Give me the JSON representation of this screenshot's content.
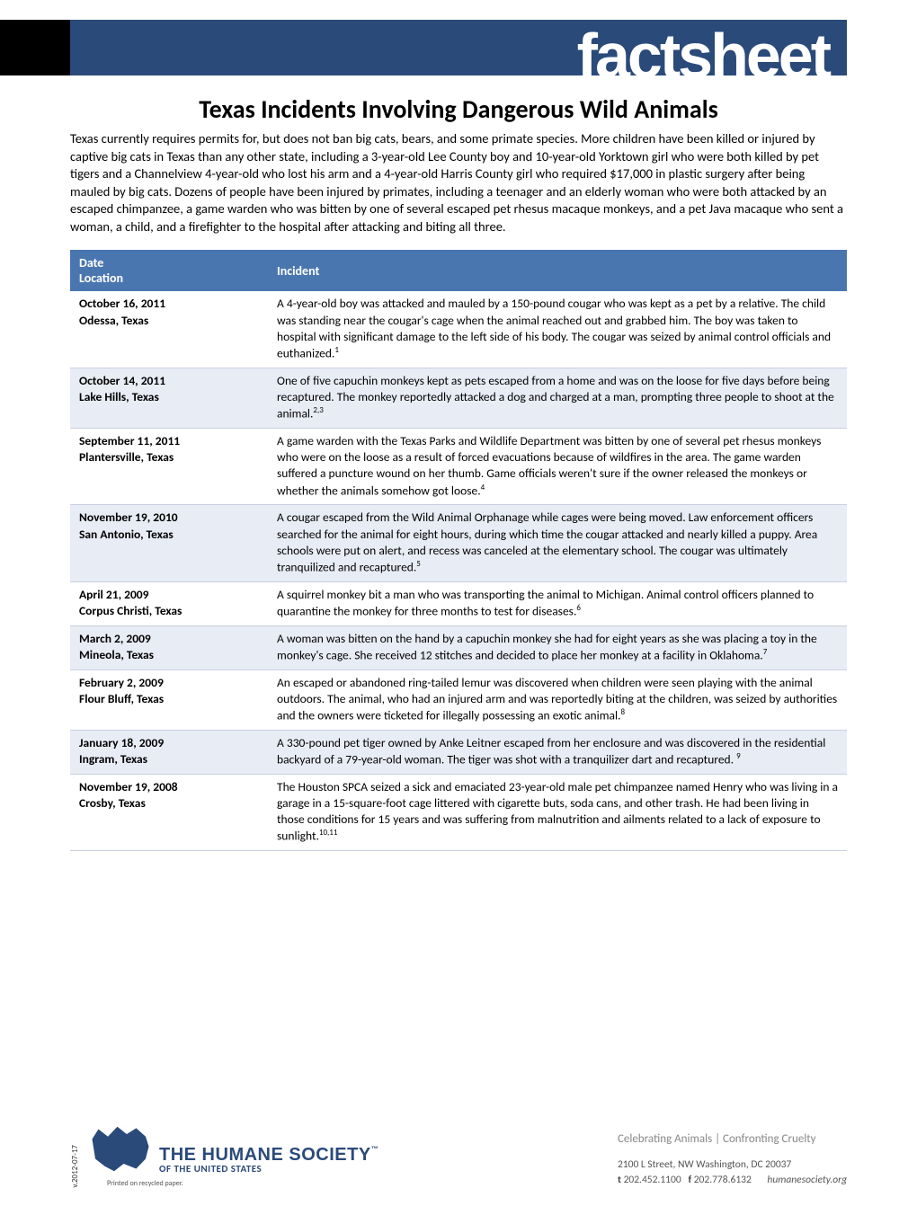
{
  "header": {
    "banner": "factsheet"
  },
  "title": "Texas Incidents Involving Dangerous Wild Animals",
  "intro": "Texas currently requires permits for, but does not ban big cats, bears, and some primate species. More children have been killed or injured by captive big cats in Texas than any other state, including a 3-year-old Lee County boy and 10-year-old Yorktown girl who were both killed by pet tigers and a Channelview 4-year-old who lost his arm and a 4-year-old Harris County girl who required $17,000 in plastic surgery after being mauled by big cats. Dozens of people have been injured by primates, including a teenager and an elderly woman who were both attacked by an escaped chimpanzee, a game warden who was bitten by one of several escaped pet rhesus macaque monkeys, and a pet Java macaque who sent a woman, a child, and a firefighter to the hospital after attacking and biting all three.",
  "table": {
    "header_col1_line1": "Date",
    "header_col1_line2": "Location",
    "header_col2": "Incident",
    "rows": [
      {
        "date": "October 16, 2011",
        "location": "Odessa, Texas",
        "incident": "A 4-year-old boy was attacked and mauled by a 150-pound cougar who was kept as a pet by a relative. The child was standing near the cougar's cage when the animal reached out and grabbed him. The boy was taken to hospital with significant damage to the left side of his body. The cougar was seized by animal control officials and euthanized.",
        "fn": "1"
      },
      {
        "date": "October 14, 2011",
        "location": "Lake Hills, Texas",
        "incident": "One of five capuchin monkeys kept as pets escaped from a home and was on the loose for five days before being recaptured. The monkey reportedly attacked a dog and charged at a man, prompting three people to shoot at the animal.",
        "fn": "2,3"
      },
      {
        "date": "September 11, 2011",
        "location": "Plantersville, Texas",
        "incident": "A game warden with the Texas Parks and Wildlife Department was bitten by one of several pet rhesus monkeys who were on the loose as a result of forced evacuations because of wildfires in the area. The game warden suffered a puncture wound on her thumb. Game officials weren't sure if the owner released the monkeys or whether the animals somehow got loose.",
        "fn": "4"
      },
      {
        "date": "November 19, 2010",
        "location": "San Antonio, Texas",
        "incident": "A cougar escaped from the Wild Animal Orphanage while cages were being moved. Law enforcement officers searched for the animal for eight hours, during which time the cougar attacked and nearly killed a puppy. Area schools were put on alert, and recess was canceled at the elementary school. The cougar was ultimately tranquilized and recaptured.",
        "fn": "5"
      },
      {
        "date": "April 21, 2009",
        "location": " Corpus Christi, Texas",
        "incident": "A squirrel monkey bit a man who was transporting the animal to Michigan. Animal control officers planned to quarantine the monkey for three months to test for diseases.",
        "fn": "6"
      },
      {
        "date": "March 2, 2009",
        "location": "Mineola, Texas",
        "incident": "A woman was bitten on the hand by a capuchin monkey she had for eight years as she was placing a toy in the monkey's cage. She received 12 stitches and decided to place her monkey at a facility in Oklahoma.",
        "fn": "7"
      },
      {
        "date": "February 2, 2009",
        "location": "Flour Bluff, Texas",
        "incident": "An escaped or abandoned ring-tailed lemur was discovered when children were seen playing with the animal outdoors. The animal, who had an injured arm and was reportedly biting at the children, was seized by authorities and the owners were ticketed for illegally possessing an exotic animal.",
        "fn": "8"
      },
      {
        "date": "January 18, 2009",
        "location": "Ingram, Texas",
        "incident": "A 330-pound pet tiger owned by Anke Leitner escaped from her enclosure and was discovered in the residential backyard of a 79-year-old woman. The tiger was shot with a tranquilizer dart and recaptured.  ",
        "fn": "9"
      },
      {
        "date": "November 19, 2008",
        "location": "Crosby, Texas",
        "incident": "The Houston SPCA seized a sick and emaciated 23-year-old male pet chimpanzee named Henry who was living in a garage in a 15-square-foot cage littered with cigarette buts, soda cans, and other trash. He had been living in those conditions for 15 years and was suffering from malnutrition and ailments related to a lack of exposure to sunlight.",
        "fn": "10,11"
      }
    ]
  },
  "footer": {
    "version": "v.2012-07-17",
    "logo_main": "THE HUMANE SOCIETY",
    "logo_sub": "OF THE UNITED STATES",
    "recycled": "Printed on recycled paper.",
    "tagline": "Celebrating Animals  |  Confronting Cruelty",
    "addr1": "2100 L Street, NW   Washington, DC 20037",
    "phone_t_label": "t",
    "phone_t": "202.452.1100",
    "phone_f_label": "f",
    "phone_f": "202.778.6132",
    "site": "humanesociety.org"
  }
}
